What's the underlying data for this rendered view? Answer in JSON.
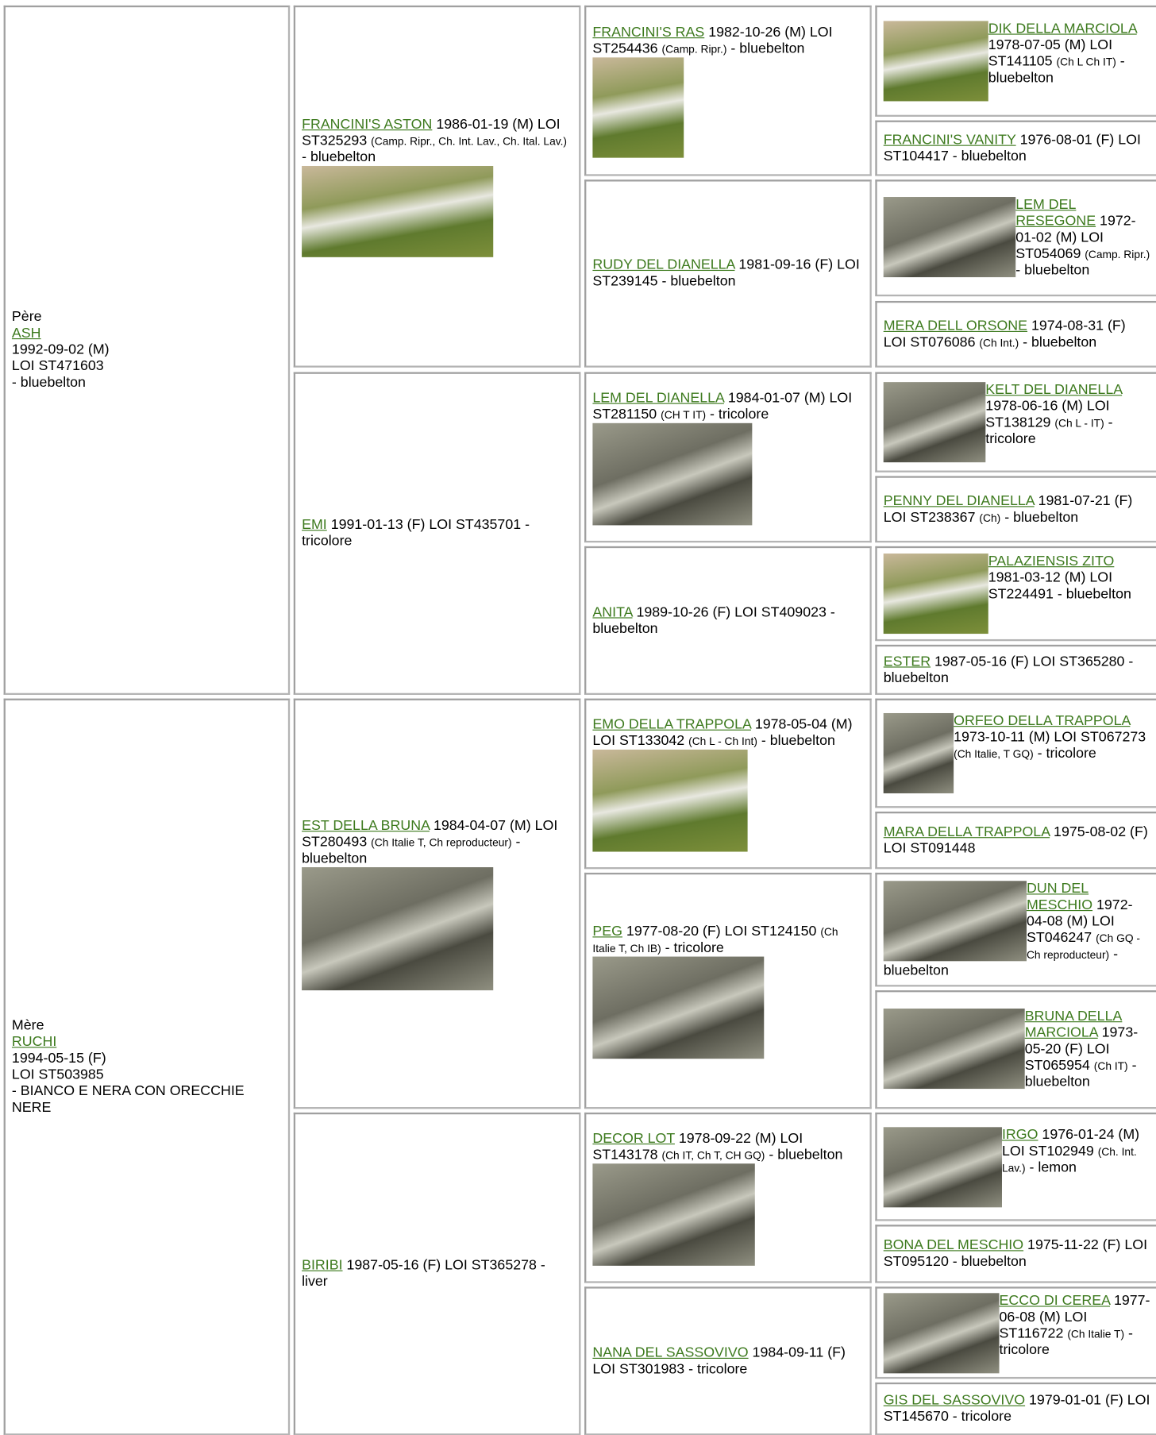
{
  "parents": [
    {
      "label": "Père",
      "name": "ASH",
      "lines": [
        "1992-09-02 (M)",
        "LOI ST471603",
        "- bluebelton"
      ]
    },
    {
      "label": "Mère",
      "name": "RUCHI",
      "lines": [
        "1994-05-15 (F)",
        "LOI ST503985",
        "- BIANCO E NERA CON ORECCHIE NERE"
      ]
    }
  ],
  "generations": [
    [
      {
        "name": "FRANCINI'S ASTON",
        "info": "1986-01-19 (M) LOI ST325293",
        "titles": "(Camp. Ripr., Ch. Int. Lav., Ch. Ital. Lav.)",
        "color": "- bluebelton"
      },
      {
        "name": "EMI",
        "info": "1991-01-13 (F) LOI ST435701",
        "color": "- tricolore"
      },
      {
        "name": "EST DELLA BRUNA",
        "info": "1984-04-07 (M) LOI ST280493",
        "titles": "(Ch Italie T, Ch reproducteur)",
        "color": "- bluebelton"
      },
      {
        "name": "BIRIBI",
        "info": "1987-05-16 (F) LOI ST365278",
        "color": "- liver"
      }
    ],
    [
      {
        "name": "FRANCINI'S RAS",
        "info": "1982-10-26 (M) LOI ST254436",
        "titles": "(Camp. Ripr.)",
        "color": "- bluebelton"
      },
      {
        "name": "RUDY DEL DIANELLA",
        "info": "1981-09-16 (F) LOI ST239145",
        "color": "- bluebelton"
      },
      {
        "name": "LEM DEL DIANELLA",
        "info": "1984-01-07 (M) LOI ST281150",
        "titles": "(CH T IT)",
        "color": "- tricolore"
      },
      {
        "name": "ANITA",
        "info": "1989-10-26 (F) LOI ST409023",
        "color": "- bluebelton"
      },
      {
        "name": "EMO DELLA TRAPPOLA",
        "info": "1978-05-04 (M) LOI ST133042",
        "titles": "(Ch L - Ch Int)",
        "color": "- bluebelton"
      },
      {
        "name": "PEG",
        "info": "1977-08-20 (F) LOI ST124150",
        "titles": "(Ch Italie T, Ch IB)",
        "color": "- tricolore"
      },
      {
        "name": "DECOR LOT",
        "info": "1978-09-22 (M) LOI ST143178",
        "titles": "(Ch IT, Ch T, CH GQ)",
        "color": "- bluebelton"
      },
      {
        "name": "NANA DEL SASSOVIVO",
        "info": "1984-09-11 (F) LOI ST301983",
        "color": "- tricolore"
      }
    ],
    [
      {
        "name": "DIK DELLA MARCIOLA",
        "info": "1978-07-05 (M) LOI ST141105",
        "titles": "(Ch L Ch IT)",
        "color": "- bluebelton"
      },
      {
        "name": "FRANCINI'S VANITY",
        "info": "1976-08-01 (F) LOI ST104417",
        "color": "- bluebelton"
      },
      {
        "name": "LEM DEL RESEGONE",
        "info": "1972-01-02 (M) LOI ST054069",
        "titles": "(Camp. Ripr.)",
        "color": "- bluebelton"
      },
      {
        "name": "MERA DELL ORSONE",
        "info": "1974-08-31 (F) LOI ST076086",
        "titles": "(Ch Int.)",
        "color": "- bluebelton"
      },
      {
        "name": "KELT DEL DIANELLA",
        "info": "1978-06-16 (M) LOI ST138129",
        "titles": "(Ch L - IT)",
        "color": "- tricolore"
      },
      {
        "name": "PENNY DEL DIANELLA",
        "info": "1981-07-21 (F) LOI ST238367",
        "titles": "(Ch)",
        "color": "- bluebelton"
      },
      {
        "name": "PALAZIENSIS ZITO",
        "info": "1981-03-12 (M) LOI ST224491",
        "color": "- bluebelton"
      },
      {
        "name": "ESTER",
        "info": "1987-05-16 (F) LOI ST365280",
        "color": "- bluebelton"
      },
      {
        "name": "ORFEO DELLA TRAPPOLA",
        "info": "1973-10-11 (M) LOI ST067273",
        "titles": "(Ch Italie, T GQ)",
        "color": "- tricolore"
      },
      {
        "name": "MARA DELLA TRAPPOLA",
        "info": "1975-08-02 (F) LOI ST091448"
      },
      {
        "name": "DUN DEL MESCHIO",
        "info": "1972-04-08 (M) LOI ST046247",
        "titles": "(Ch GQ - Ch reproducteur)",
        "color": "- bluebelton"
      },
      {
        "name": "BRUNA DELLA MARCIOLA",
        "info": "1973-05-20 (F) LOI ST065954",
        "titles": "(Ch IT)",
        "color": "- bluebelton"
      },
      {
        "name": "IRGO",
        "info": "1976-01-24 (M) LOI ST102949",
        "titles": "(Ch. Int. Lav.)",
        "color": "- lemon"
      },
      {
        "name": "BONA DEL MESCHIO",
        "info": "1975-11-22 (F) LOI ST095120",
        "color": "- bluebelton"
      },
      {
        "name": "ECCO DI CEREA",
        "info": "1977-06-08 (M) LOI ST116722",
        "titles": "(Ch Italie T)",
        "color": "- tricolore"
      },
      {
        "name": "GIS DEL SASSOVIVO",
        "info": "1979-01-01 (F) LOI ST145670",
        "color": "- tricolore"
      }
    ]
  ]
}
